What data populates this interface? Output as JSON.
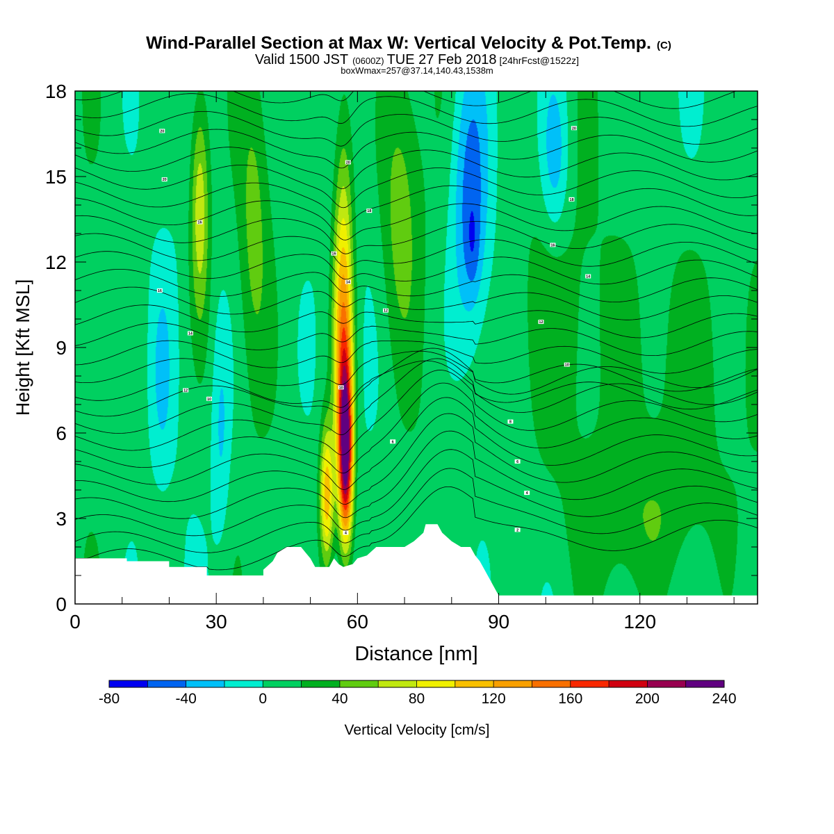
{
  "chart_data": {
    "type": "heatmap",
    "title": "Wind-Parallel Section at Max W: Vertical Velocity & Pot.Temp.",
    "title_mark": "(C)",
    "subtitle": {
      "valid": "Valid 1500 JST",
      "utc": "(0600Z)",
      "date": "TUE 27 Feb 2018",
      "forecast": "[24hrFcst@1522z]"
    },
    "info": "boxWmax=257@37.14,140.43,1538m",
    "xlabel": "Distance [nm]",
    "ylabel": "Height [Kft MSL]",
    "xlim": [
      0,
      145
    ],
    "ylim": [
      0,
      18
    ],
    "xticks": [
      0,
      30,
      60,
      90,
      120
    ],
    "yticks": [
      0,
      3,
      6,
      9,
      12,
      15,
      18
    ],
    "colorbar": {
      "label": "Vertical Velocity [cm/s]",
      "min": -80,
      "max": 240,
      "step": 20,
      "tick_labels": [
        -80,
        -40,
        0,
        40,
        80,
        120,
        160,
        200,
        240
      ],
      "colors": [
        "#0000f0",
        "#0064f0",
        "#00c0f8",
        "#00eed0",
        "#00d060",
        "#00b020",
        "#60cc10",
        "#c0e810",
        "#f0f000",
        "#f8c000",
        "#f8a000",
        "#f87000",
        "#f82800",
        "#d00010",
        "#980050",
        "#600080"
      ]
    },
    "terrain": [
      [
        0,
        1.6
      ],
      [
        11,
        1.6
      ],
      [
        11,
        1.5
      ],
      [
        20,
        1.5
      ],
      [
        20,
        1.3
      ],
      [
        28,
        1.3
      ],
      [
        28,
        1.0
      ],
      [
        40,
        1.0
      ],
      [
        40,
        1.2
      ],
      [
        42,
        1.5
      ],
      [
        43,
        1.8
      ],
      [
        45,
        2.0
      ],
      [
        48,
        2.0
      ],
      [
        49,
        1.8
      ],
      [
        50,
        1.6
      ],
      [
        51,
        1.3
      ],
      [
        54,
        1.3
      ],
      [
        55,
        1.6
      ],
      [
        56,
        1.4
      ],
      [
        57,
        1.3
      ],
      [
        59,
        1.4
      ],
      [
        60,
        1.6
      ],
      [
        62,
        1.7
      ],
      [
        64,
        2.0
      ],
      [
        70,
        2.0
      ],
      [
        72,
        2.2
      ],
      [
        74,
        2.5
      ],
      [
        74.5,
        2.8
      ],
      [
        77,
        2.8
      ],
      [
        78,
        2.5
      ],
      [
        80,
        2.2
      ],
      [
        82,
        2.0
      ],
      [
        84,
        2.0
      ],
      [
        85,
        1.7
      ],
      [
        86,
        1.5
      ],
      [
        87,
        1.2
      ],
      [
        88,
        0.9
      ],
      [
        89,
        0.6
      ],
      [
        90,
        0.3
      ],
      [
        145,
        0.3
      ]
    ],
    "features": [
      {
        "x": 57.5,
        "y": 5.2,
        "wx": 1.5,
        "wy": 3.0,
        "value": 200
      },
      {
        "x": 57.0,
        "y": 8.5,
        "wx": 2.0,
        "wy": 4.5,
        "value": 100
      },
      {
        "x": 53.5,
        "y": 3.8,
        "wx": 1.5,
        "wy": 2.5,
        "value": 110
      },
      {
        "x": 57.0,
        "y": 13.0,
        "wx": 2.2,
        "wy": 6.0,
        "value": 50
      },
      {
        "x": 26.5,
        "y": 14.0,
        "wx": 2.0,
        "wy": 4.0,
        "value": 70
      },
      {
        "x": 38.0,
        "y": 13.5,
        "wx": 3.0,
        "wy": 5.0,
        "value": 35
      },
      {
        "x": 69.0,
        "y": 14.0,
        "wx": 4.0,
        "wy": 5.0,
        "value": 40
      },
      {
        "x": 84.0,
        "y": 14.0,
        "wx": 4.0,
        "wy": 5.0,
        "value": -60
      },
      {
        "x": 84.5,
        "y": 12.5,
        "wx": 1.5,
        "wy": 1.5,
        "value": -20
      },
      {
        "x": 102.0,
        "y": 15.5,
        "wx": 3.0,
        "wy": 3.0,
        "value": -40
      },
      {
        "x": 18.5,
        "y": 8.0,
        "wx": 2.0,
        "wy": 3.0,
        "value": -25
      },
      {
        "x": 31.0,
        "y": 6.0,
        "wx": 2.0,
        "wy": 4.0,
        "value": -30
      },
      {
        "x": 100.0,
        "y": 10.0,
        "wx": 10.0,
        "wy": 6.0,
        "value": 25
      },
      {
        "x": 130.0,
        "y": 8.0,
        "wx": 12.0,
        "wy": 6.0,
        "value": 25
      },
      {
        "x": 120.0,
        "y": 3.0,
        "wx": 15.0,
        "wy": 2.5,
        "value": 22
      }
    ],
    "isentrope_labels": [
      {
        "x": 18.5,
        "y": 16.6,
        "text": "20"
      },
      {
        "x": 19.0,
        "y": 14.9,
        "text": "20"
      },
      {
        "x": 26.5,
        "y": 13.4,
        "text": "16"
      },
      {
        "x": 18.0,
        "y": 11.0,
        "text": "16"
      },
      {
        "x": 24.5,
        "y": 9.5,
        "text": "14"
      },
      {
        "x": 23.5,
        "y": 7.5,
        "text": "12"
      },
      {
        "x": 28.5,
        "y": 7.2,
        "text": "10"
      },
      {
        "x": 58.0,
        "y": 15.5,
        "text": "20"
      },
      {
        "x": 62.5,
        "y": 13.8,
        "text": "18"
      },
      {
        "x": 55.0,
        "y": 12.3,
        "text": "16"
      },
      {
        "x": 58.0,
        "y": 11.3,
        "text": "14"
      },
      {
        "x": 66.0,
        "y": 10.3,
        "text": "12"
      },
      {
        "x": 56.5,
        "y": 7.6,
        "text": "10"
      },
      {
        "x": 67.5,
        "y": 5.7,
        "text": "6"
      },
      {
        "x": 57.5,
        "y": 2.5,
        "text": "4"
      },
      {
        "x": 106.0,
        "y": 16.7,
        "text": "20"
      },
      {
        "x": 105.5,
        "y": 14.2,
        "text": "18"
      },
      {
        "x": 101.5,
        "y": 12.6,
        "text": "16"
      },
      {
        "x": 109.0,
        "y": 11.5,
        "text": "14"
      },
      {
        "x": 99.0,
        "y": 9.9,
        "text": "12"
      },
      {
        "x": 104.5,
        "y": 8.4,
        "text": "10"
      },
      {
        "x": 92.5,
        "y": 6.4,
        "text": "8"
      },
      {
        "x": 94.0,
        "y": 5.0,
        "text": "6"
      },
      {
        "x": 96.0,
        "y": 3.9,
        "text": "4"
      },
      {
        "x": 94.0,
        "y": 2.6,
        "text": "2"
      }
    ]
  }
}
